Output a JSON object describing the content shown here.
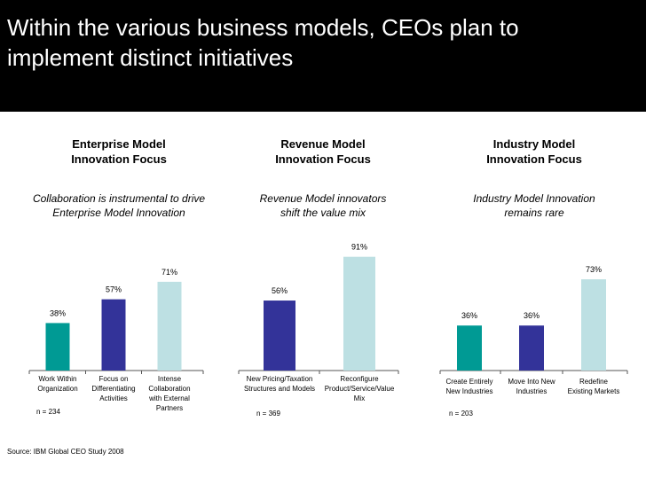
{
  "header": {
    "title": "Within the various business models, CEOs plan to implement distinct initiatives",
    "background": "#000000"
  },
  "colors": {
    "teal": "#009a94",
    "navy": "#333399",
    "light_blue": "#bde0e3"
  },
  "panels": [
    {
      "title_line1": "Enterprise Model",
      "title_line2": "Innovation Focus",
      "subtitle_line1": "Collaboration is instrumental to drive",
      "subtitle_line2": "Enterprise Model Innovation",
      "n": "n = 234"
    },
    {
      "title_line1": "Revenue Model",
      "title_line2": "Innovation Focus",
      "subtitle_line1": "Revenue Model innovators",
      "subtitle_line2": "shift the value mix",
      "n": "n = 369"
    },
    {
      "title_line1": "Industry Model",
      "title_line2": "Innovation Focus",
      "subtitle_line1": "Industry Model Innovation",
      "subtitle_line2": "remains rare",
      "n": "n = 203"
    }
  ],
  "chart_data": [
    {
      "type": "bar",
      "title": "Enterprise Model Innovation Focus",
      "categories": [
        [
          "Work Within",
          "Organization"
        ],
        [
          "Focus on",
          "Differentiating",
          "Activities"
        ],
        [
          "Intense",
          "Collaboration",
          "with External",
          "Partners"
        ]
      ],
      "values": [
        38,
        57,
        71
      ],
      "labels": [
        "38%",
        "57%",
        "71%"
      ],
      "colors": [
        "#009a94",
        "#333399",
        "#bde0e3"
      ],
      "ylim": [
        0,
        100
      ]
    },
    {
      "type": "bar",
      "title": "Revenue Model Innovation Focus",
      "categories": [
        [
          "New Pricing/Taxation",
          "Structures and Models"
        ],
        [
          "Reconfigure",
          "Product/Service/Value",
          "Mix"
        ]
      ],
      "values": [
        56,
        91
      ],
      "labels": [
        "56%",
        "91%"
      ],
      "colors": [
        "#333399",
        "#bde0e3"
      ],
      "ylim": [
        0,
        100
      ]
    },
    {
      "type": "bar",
      "title": "Industry Model Innovation Focus",
      "categories": [
        [
          "Create Entirely",
          "New Industries"
        ],
        [
          "Move Into New",
          "Industries"
        ],
        [
          "Redefine",
          "Existing Markets"
        ]
      ],
      "values": [
        36,
        36,
        73
      ],
      "labels": [
        "36%",
        "36%",
        "73%"
      ],
      "colors": [
        "#009a94",
        "#333399",
        "#bde0e3"
      ],
      "ylim": [
        0,
        100
      ]
    }
  ],
  "source": "Source: IBM Global CEO Study 2008"
}
